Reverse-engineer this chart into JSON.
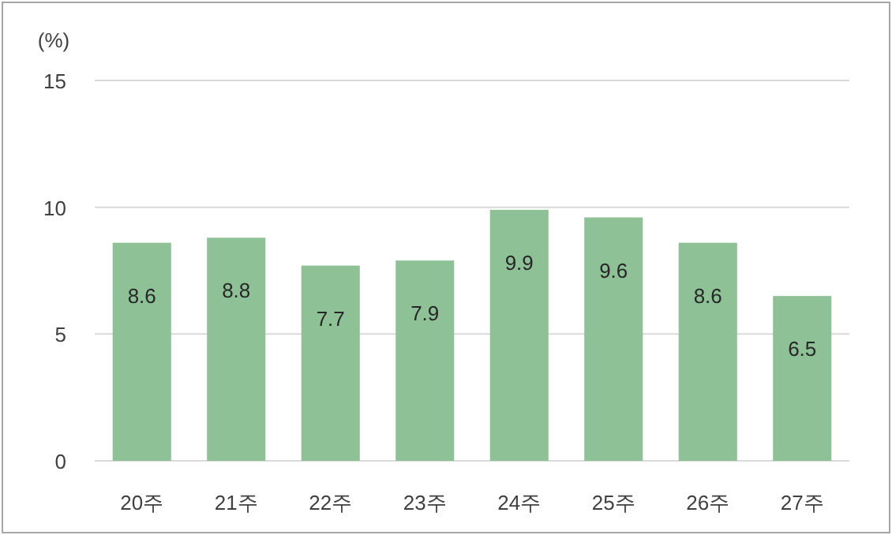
{
  "chart_data": {
    "type": "bar",
    "ylabel": "(%)",
    "categories": [
      "20주",
      "21주",
      "22주",
      "23주",
      "24주",
      "25주",
      "26주",
      "27주"
    ],
    "values": [
      8.6,
      8.8,
      7.7,
      7.9,
      9.9,
      9.6,
      8.6,
      6.5
    ],
    "color": "#8fc197",
    "ylim": [
      0,
      15
    ],
    "yticks": [
      0,
      5,
      10,
      15
    ],
    "grid": "y",
    "data_labels": true
  }
}
